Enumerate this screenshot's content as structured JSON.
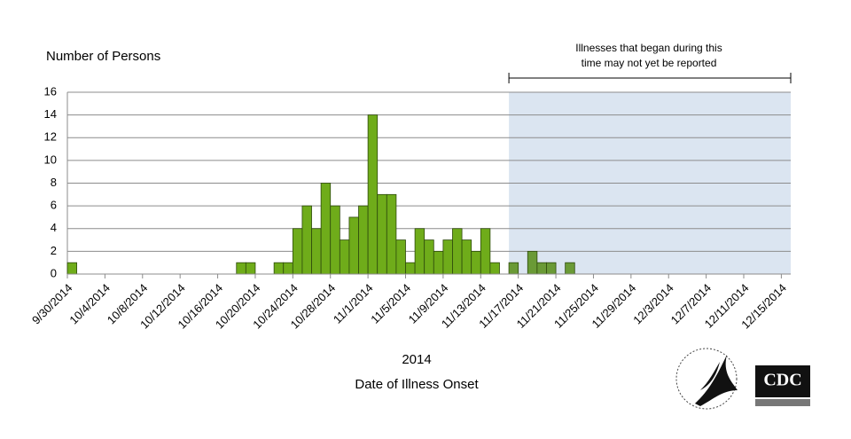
{
  "chart_data": {
    "type": "bar",
    "y_label": "Number of Persons",
    "x_label": [
      "2014",
      "Date of Illness Onset"
    ],
    "annotation": [
      "Illnesses that began during this",
      "time may not yet be reported"
    ],
    "categories": [
      "9/30/2014",
      null,
      null,
      null,
      "10/4/2014",
      null,
      null,
      null,
      "10/8/2014",
      null,
      null,
      null,
      "10/12/2014",
      null,
      null,
      null,
      "10/16/2014",
      null,
      null,
      null,
      "10/20/2014",
      null,
      null,
      null,
      "10/24/2014",
      null,
      null,
      null,
      "10/28/2014",
      null,
      null,
      null,
      "11/1/2014",
      null,
      null,
      null,
      "11/5/2014",
      null,
      null,
      null,
      "11/9/2014",
      null,
      null,
      null,
      "11/13/2014",
      null,
      null,
      null,
      "11/17/2014",
      null,
      null,
      null,
      "11/21/2014",
      null,
      null,
      null,
      "11/25/2014",
      null,
      null,
      null,
      "11/29/2014",
      null,
      null,
      null,
      "12/3/2014",
      null,
      null,
      null,
      "12/7/2014",
      null,
      null,
      null,
      "12/11/2014",
      null,
      null,
      null,
      "12/15/2014"
    ],
    "values": [
      1,
      0,
      0,
      0,
      0,
      0,
      0,
      0,
      0,
      0,
      0,
      0,
      0,
      0,
      0,
      0,
      0,
      0,
      1,
      1,
      0,
      0,
      1,
      1,
      4,
      6,
      4,
      8,
      6,
      3,
      5,
      6,
      14,
      7,
      7,
      3,
      1,
      4,
      3,
      2,
      3,
      4,
      3,
      2,
      4,
      1,
      0,
      1,
      0,
      2,
      1,
      1,
      0,
      1,
      0,
      0,
      0,
      0,
      0,
      0,
      0,
      0,
      0,
      0,
      0,
      0,
      0,
      0,
      0,
      0,
      0,
      0,
      0,
      0,
      0,
      0,
      0
    ],
    "color": "#6fac1a",
    "pending_color": "#6a9a36",
    "shade": {
      "from": 47,
      "color": "#dbe5f1"
    },
    "ylim": [
      0,
      16
    ],
    "yticks": [
      0,
      2,
      4,
      6,
      8,
      10,
      12,
      14,
      16
    ],
    "grid": true
  },
  "logos": {
    "cdc": "CDC"
  }
}
